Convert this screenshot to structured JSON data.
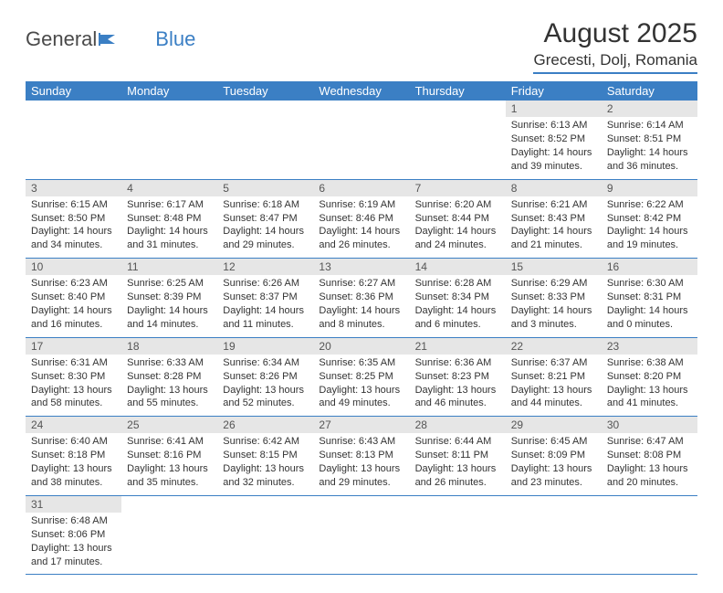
{
  "logo": {
    "text1": "General",
    "text2": "Blue"
  },
  "title": "August 2025",
  "location": "Grecesti, Dolj, Romania",
  "colors": {
    "header_bg": "#3b7fc4",
    "header_fg": "#ffffff",
    "daynum_bg": "#e6e6e6",
    "border": "#3b7fc4",
    "text": "#333333"
  },
  "weekdays": [
    "Sunday",
    "Monday",
    "Tuesday",
    "Wednesday",
    "Thursday",
    "Friday",
    "Saturday"
  ],
  "weeks": [
    [
      null,
      null,
      null,
      null,
      null,
      {
        "n": "1",
        "sr": "6:13 AM",
        "ss": "8:52 PM",
        "dl": "14 hours and 39 minutes."
      },
      {
        "n": "2",
        "sr": "6:14 AM",
        "ss": "8:51 PM",
        "dl": "14 hours and 36 minutes."
      }
    ],
    [
      {
        "n": "3",
        "sr": "6:15 AM",
        "ss": "8:50 PM",
        "dl": "14 hours and 34 minutes."
      },
      {
        "n": "4",
        "sr": "6:17 AM",
        "ss": "8:48 PM",
        "dl": "14 hours and 31 minutes."
      },
      {
        "n": "5",
        "sr": "6:18 AM",
        "ss": "8:47 PM",
        "dl": "14 hours and 29 minutes."
      },
      {
        "n": "6",
        "sr": "6:19 AM",
        "ss": "8:46 PM",
        "dl": "14 hours and 26 minutes."
      },
      {
        "n": "7",
        "sr": "6:20 AM",
        "ss": "8:44 PM",
        "dl": "14 hours and 24 minutes."
      },
      {
        "n": "8",
        "sr": "6:21 AM",
        "ss": "8:43 PM",
        "dl": "14 hours and 21 minutes."
      },
      {
        "n": "9",
        "sr": "6:22 AM",
        "ss": "8:42 PM",
        "dl": "14 hours and 19 minutes."
      }
    ],
    [
      {
        "n": "10",
        "sr": "6:23 AM",
        "ss": "8:40 PM",
        "dl": "14 hours and 16 minutes."
      },
      {
        "n": "11",
        "sr": "6:25 AM",
        "ss": "8:39 PM",
        "dl": "14 hours and 14 minutes."
      },
      {
        "n": "12",
        "sr": "6:26 AM",
        "ss": "8:37 PM",
        "dl": "14 hours and 11 minutes."
      },
      {
        "n": "13",
        "sr": "6:27 AM",
        "ss": "8:36 PM",
        "dl": "14 hours and 8 minutes."
      },
      {
        "n": "14",
        "sr": "6:28 AM",
        "ss": "8:34 PM",
        "dl": "14 hours and 6 minutes."
      },
      {
        "n": "15",
        "sr": "6:29 AM",
        "ss": "8:33 PM",
        "dl": "14 hours and 3 minutes."
      },
      {
        "n": "16",
        "sr": "6:30 AM",
        "ss": "8:31 PM",
        "dl": "14 hours and 0 minutes."
      }
    ],
    [
      {
        "n": "17",
        "sr": "6:31 AM",
        "ss": "8:30 PM",
        "dl": "13 hours and 58 minutes."
      },
      {
        "n": "18",
        "sr": "6:33 AM",
        "ss": "8:28 PM",
        "dl": "13 hours and 55 minutes."
      },
      {
        "n": "19",
        "sr": "6:34 AM",
        "ss": "8:26 PM",
        "dl": "13 hours and 52 minutes."
      },
      {
        "n": "20",
        "sr": "6:35 AM",
        "ss": "8:25 PM",
        "dl": "13 hours and 49 minutes."
      },
      {
        "n": "21",
        "sr": "6:36 AM",
        "ss": "8:23 PM",
        "dl": "13 hours and 46 minutes."
      },
      {
        "n": "22",
        "sr": "6:37 AM",
        "ss": "8:21 PM",
        "dl": "13 hours and 44 minutes."
      },
      {
        "n": "23",
        "sr": "6:38 AM",
        "ss": "8:20 PM",
        "dl": "13 hours and 41 minutes."
      }
    ],
    [
      {
        "n": "24",
        "sr": "6:40 AM",
        "ss": "8:18 PM",
        "dl": "13 hours and 38 minutes."
      },
      {
        "n": "25",
        "sr": "6:41 AM",
        "ss": "8:16 PM",
        "dl": "13 hours and 35 minutes."
      },
      {
        "n": "26",
        "sr": "6:42 AM",
        "ss": "8:15 PM",
        "dl": "13 hours and 32 minutes."
      },
      {
        "n": "27",
        "sr": "6:43 AM",
        "ss": "8:13 PM",
        "dl": "13 hours and 29 minutes."
      },
      {
        "n": "28",
        "sr": "6:44 AM",
        "ss": "8:11 PM",
        "dl": "13 hours and 26 minutes."
      },
      {
        "n": "29",
        "sr": "6:45 AM",
        "ss": "8:09 PM",
        "dl": "13 hours and 23 minutes."
      },
      {
        "n": "30",
        "sr": "6:47 AM",
        "ss": "8:08 PM",
        "dl": "13 hours and 20 minutes."
      }
    ],
    [
      {
        "n": "31",
        "sr": "6:48 AM",
        "ss": "8:06 PM",
        "dl": "13 hours and 17 minutes."
      },
      null,
      null,
      null,
      null,
      null,
      null
    ]
  ],
  "labels": {
    "sunrise": "Sunrise: ",
    "sunset": "Sunset: ",
    "daylight": "Daylight: "
  }
}
